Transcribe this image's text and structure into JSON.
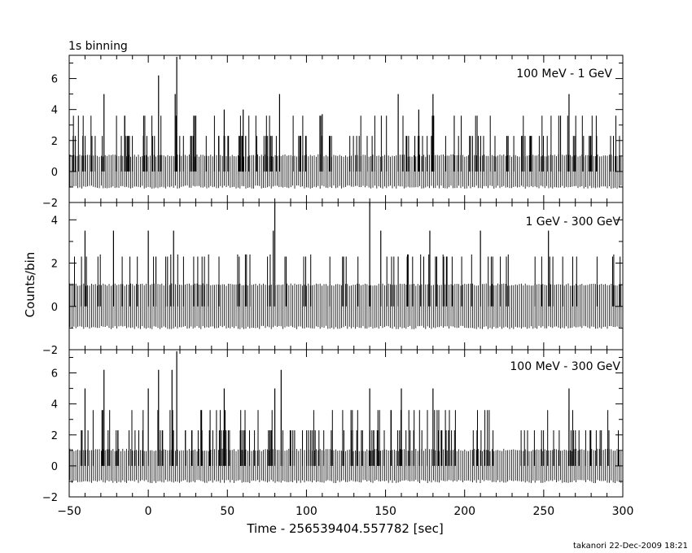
{
  "header": {
    "binning_label": "1s binning"
  },
  "footer": {
    "credit": "takanori 22-Dec-2009 18:21"
  },
  "chart_data": [
    {
      "type": "line",
      "annotation": "100 MeV - 1 GeV",
      "xlabel": "Time - 256539404.557782 [sec]",
      "ylabel": "Counts/bin",
      "xlim": [
        -50,
        300
      ],
      "ylim": [
        -2,
        7.5
      ],
      "xticks": [
        -50,
        0,
        50,
        100,
        150,
        200,
        250,
        300
      ],
      "yticks": [
        -2,
        0,
        2,
        4,
        6
      ],
      "peaks": [
        {
          "x": 6.5,
          "y": 6.2
        },
        {
          "x": 18,
          "y": 7.4
        },
        {
          "x": -28,
          "y": 5
        },
        {
          "x": 83,
          "y": 5
        },
        {
          "x": 48,
          "y": 4
        },
        {
          "x": 17,
          "y": 5
        },
        {
          "x": 60,
          "y": 4
        },
        {
          "x": 158,
          "y": 5
        },
        {
          "x": 266,
          "y": 5
        },
        {
          "x": 110,
          "y": 3.7
        },
        {
          "x": 171,
          "y": 4
        },
        {
          "x": 180,
          "y": 5
        }
      ]
    },
    {
      "type": "line",
      "annotation": "1 GeV - 300 GeV",
      "xlabel": "Time - 256539404.557782 [sec]",
      "ylabel": "Counts/bin",
      "xlim": [
        -50,
        300
      ],
      "ylim": [
        -2,
        4.8
      ],
      "xticks": [
        -50,
        0,
        50,
        100,
        150,
        200,
        250,
        300
      ],
      "yticks": [
        -2,
        0,
        2,
        4
      ],
      "peaks": [
        {
          "x": 80,
          "y": 4.8
        },
        {
          "x": 140,
          "y": 4.8
        },
        {
          "x": 79,
          "y": 3.5
        },
        {
          "x": -40,
          "y": 3.5
        },
        {
          "x": -22,
          "y": 3.5
        },
        {
          "x": 0,
          "y": 3.5
        },
        {
          "x": 16,
          "y": 3.5
        },
        {
          "x": 147,
          "y": 3.5
        },
        {
          "x": 178,
          "y": 3.5
        },
        {
          "x": 210,
          "y": 3.5
        },
        {
          "x": 253,
          "y": 3.5
        }
      ]
    },
    {
      "type": "line",
      "annotation": "100 MeV - 300 GeV",
      "xlabel": "Time - 256539404.557782 [sec]",
      "ylabel": "Counts/bin",
      "xlim": [
        -50,
        300
      ],
      "ylim": [
        -2,
        7.5
      ],
      "xticks": [
        -50,
        0,
        50,
        100,
        150,
        200,
        250,
        300
      ],
      "yticks": [
        -2,
        0,
        2,
        4,
        6
      ],
      "peaks": [
        {
          "x": 6.5,
          "y": 6.2
        },
        {
          "x": 18,
          "y": 7.4
        },
        {
          "x": -28,
          "y": 6.2
        },
        {
          "x": 15,
          "y": 6.2
        },
        {
          "x": 84,
          "y": 6.2
        },
        {
          "x": 80,
          "y": 5
        },
        {
          "x": -40,
          "y": 5
        },
        {
          "x": 0,
          "y": 5
        },
        {
          "x": 48,
          "y": 5
        },
        {
          "x": 140,
          "y": 5
        },
        {
          "x": 160,
          "y": 5
        },
        {
          "x": 180,
          "y": 5
        },
        {
          "x": 266,
          "y": 5
        }
      ]
    }
  ]
}
